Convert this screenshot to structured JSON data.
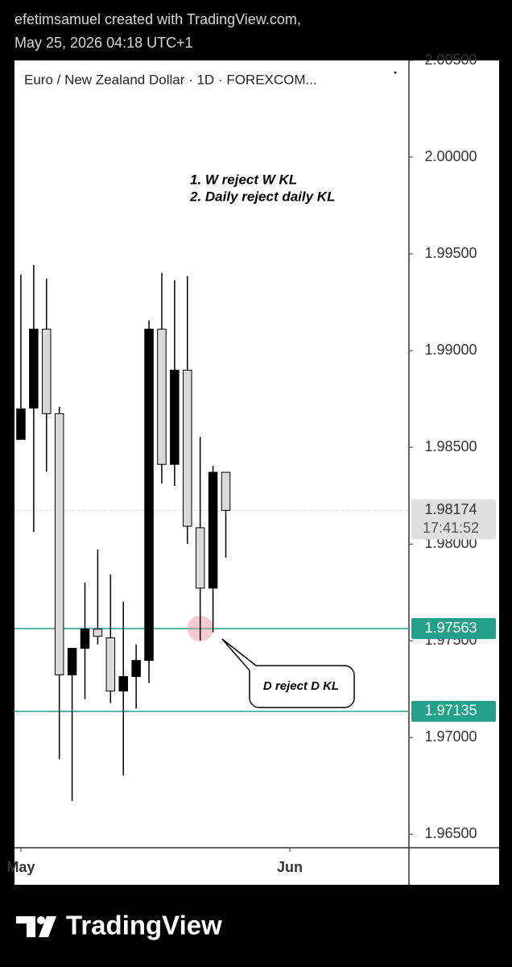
{
  "header": {
    "line1": "efetimsamuel created with TradingView.com,",
    "line2": "May 25, 2026 04:18 UTC+1"
  },
  "chart_data": {
    "type": "candlestick",
    "title": "Euro / New Zealand Dollar · 1D · FOREXCOM...",
    "x": [
      0,
      1,
      2,
      3,
      4,
      5,
      6,
      7,
      8,
      9,
      10,
      11,
      12,
      13,
      14,
      15,
      16
    ],
    "open": [
      1.98541,
      1.98703,
      1.99111,
      1.98674,
      1.97324,
      1.97461,
      1.9756,
      1.97515,
      1.9724,
      1.97315,
      1.97398,
      1.99111,
      1.98412,
      1.98899,
      1.98084,
      1.97772,
      1.98371
    ],
    "high": [
      1.99393,
      1.99443,
      1.99372,
      1.98708,
      1.97461,
      1.97801,
      1.97972,
      1.97843,
      1.97702,
      1.97481,
      1.99156,
      1.99402,
      1.99364,
      1.99385,
      1.98554,
      1.98404,
      1.98371
    ],
    "low": [
      1.98541,
      1.98063,
      1.98375,
      1.96887,
      1.96671,
      1.97199,
      1.97481,
      1.97178,
      1.96804,
      1.97149,
      1.97282,
      1.98313,
      1.983,
      1.98001,
      1.97502,
      1.97544,
      1.9793
    ],
    "close": [
      1.98699,
      1.99111,
      1.98674,
      1.97324,
      1.97461,
      1.9756,
      1.97523,
      1.9724,
      1.97315,
      1.97398,
      1.99111,
      1.98412,
      1.98899,
      1.98092,
      1.97772,
      1.98371,
      1.98174
    ],
    "up_color": "#000000",
    "down_color": "#d9d9d9",
    "xlim": [
      -0.5,
      30.3
    ],
    "xticks": [
      {
        "value": 0,
        "label": "May"
      },
      {
        "value": 21,
        "label": "Jun"
      }
    ],
    "ylim": [
      1.9643,
      2.005
    ],
    "yticks": [
      {
        "value": 1.965,
        "label": "1.96500"
      },
      {
        "value": 1.97,
        "label": "1.97000"
      },
      {
        "value": 1.975,
        "label": "1.97500"
      },
      {
        "value": 1.98,
        "label": "1.98000"
      },
      {
        "value": 1.985,
        "label": "1.98500"
      },
      {
        "value": 1.99,
        "label": "1.99000"
      },
      {
        "value": 1.995,
        "label": "1.99500"
      },
      {
        "value": 2,
        "label": "2.00000"
      },
      {
        "value": 2.005,
        "label": "2.00500"
      }
    ],
    "hlines": [
      1.97563,
      1.97135
    ],
    "hline_color": "#22a08a",
    "last_price": 1.98174,
    "countdown": "17:41:52",
    "annotations": [
      "1. W reject W KL",
      "2. Daily reject daily KL",
      "D reject D KL"
    ]
  },
  "footer": {
    "brand": "TradingView"
  }
}
